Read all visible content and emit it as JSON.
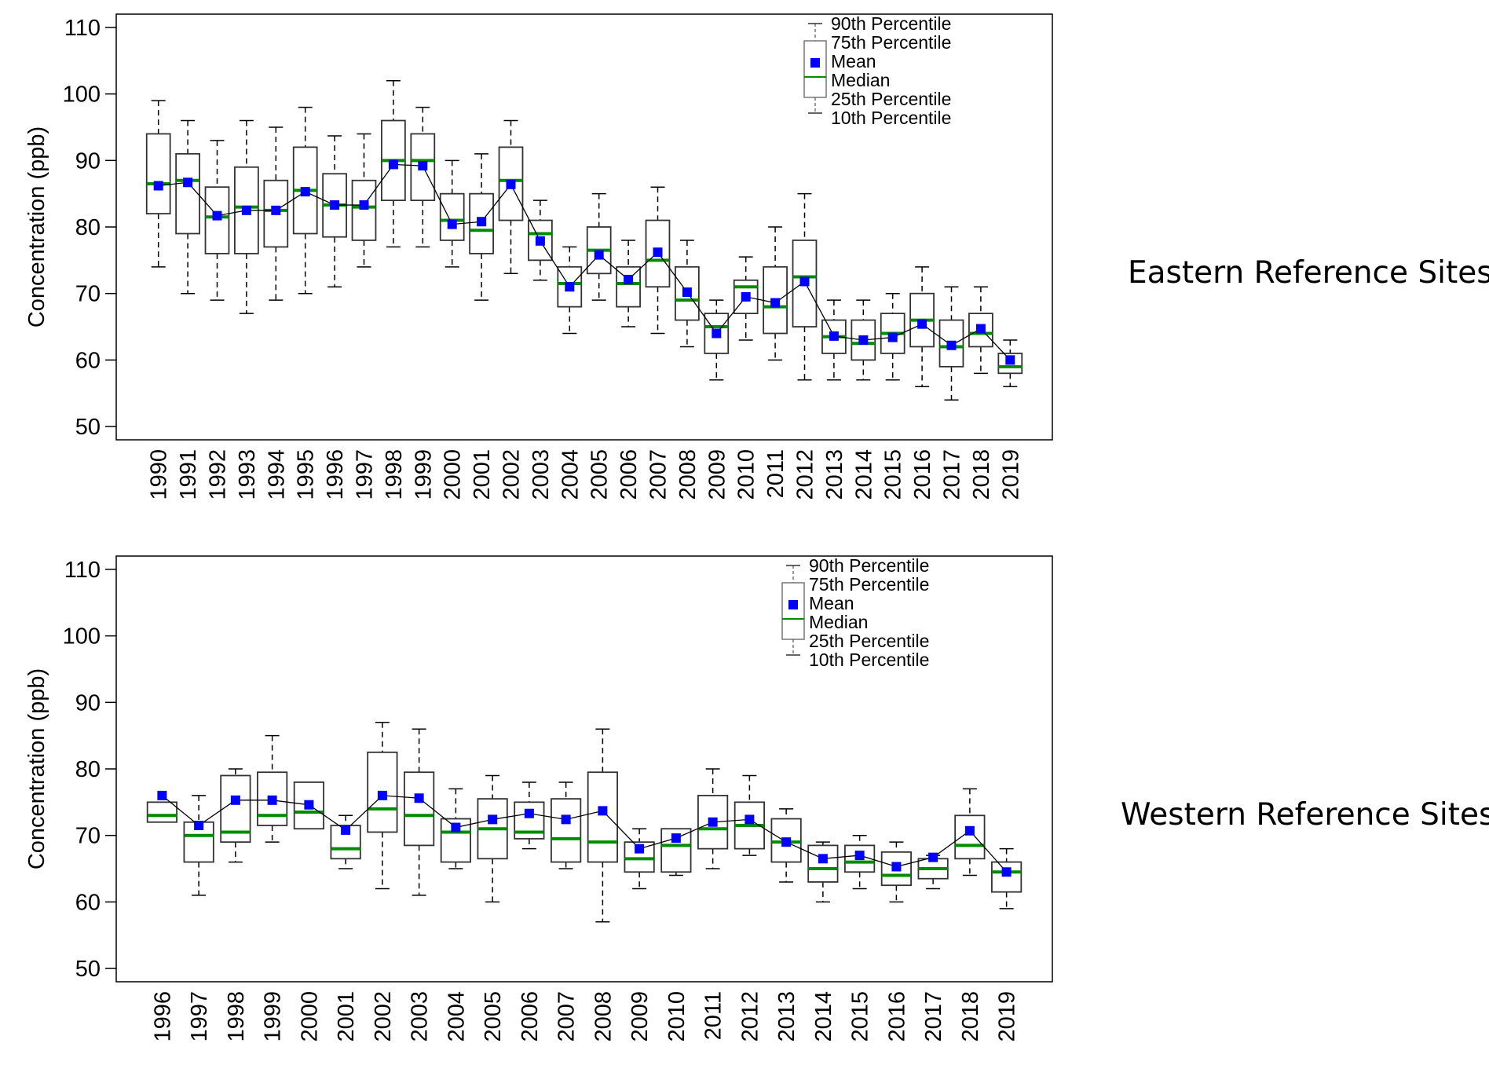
{
  "chart_data": [
    {
      "type": "boxplot",
      "title": "Eastern Reference Sites",
      "xlabel": "",
      "ylabel": "Concentration (ppb)",
      "ylim": [
        48,
        112
      ],
      "yticks": [
        50,
        60,
        70,
        80,
        90,
        100,
        110
      ],
      "legend": {
        "placement": "top-right",
        "entries": [
          "90th Percentile",
          "75th Percentile",
          "Mean",
          "Median",
          "25th Percentile",
          "10th Percentile"
        ]
      },
      "categories": [
        "1990",
        "1991",
        "1992",
        "1993",
        "1994",
        "1995",
        "1996",
        "1997",
        "1998",
        "1999",
        "2000",
        "2001",
        "2002",
        "2003",
        "2004",
        "2005",
        "2006",
        "2007",
        "2008",
        "2009",
        "2010",
        "2011",
        "2012",
        "2013",
        "2014",
        "2015",
        "2016",
        "2017",
        "2018",
        "2019"
      ],
      "p10": [
        74,
        70,
        69,
        67,
        69,
        70,
        71,
        74,
        77,
        77,
        74,
        69,
        73,
        72,
        64,
        69,
        65,
        64,
        62,
        57,
        63,
        60,
        57,
        57,
        57,
        57,
        56,
        54,
        58,
        56
      ],
      "p25": [
        82,
        79,
        76,
        76,
        77,
        79,
        78.5,
        78,
        84,
        84,
        78,
        76,
        81,
        75,
        68,
        73,
        68,
        71,
        66,
        61,
        67,
        64,
        65,
        61,
        60,
        61,
        62,
        59,
        62,
        58
      ],
      "median": [
        86.5,
        87,
        81.5,
        83,
        82.5,
        85.5,
        83.3,
        83,
        90,
        90,
        81,
        79.5,
        87,
        79,
        71.5,
        76.5,
        71.5,
        75,
        69,
        65,
        71,
        68,
        72.5,
        63.5,
        62.5,
        64,
        66,
        62,
        64,
        59
      ],
      "mean": [
        86.2,
        86.7,
        81.7,
        82.5,
        82.5,
        85.3,
        83.3,
        83.3,
        89.4,
        89.2,
        80.4,
        80.8,
        86.4,
        77.9,
        71,
        75.8,
        72.1,
        76.2,
        70.2,
        64,
        69.5,
        68.6,
        71.8,
        63.6,
        63,
        63.4,
        65.4,
        62.2,
        64.7,
        60
      ],
      "p75": [
        94,
        91,
        86,
        89,
        87,
        92,
        88,
        87,
        96,
        94,
        85,
        85,
        92,
        81,
        74,
        80,
        74,
        81,
        74,
        67,
        72,
        74,
        78,
        66,
        66,
        67,
        70,
        66,
        67,
        61
      ],
      "p90": [
        99,
        96,
        93,
        96,
        95,
        98,
        93.7,
        94,
        102,
        98,
        90,
        91,
        96,
        84,
        77,
        85,
        78,
        86,
        78,
        69,
        75.5,
        80,
        85,
        69,
        69,
        70,
        74,
        71,
        71,
        63
      ]
    },
    {
      "type": "boxplot",
      "title": "Western Reference Sites",
      "xlabel": "",
      "ylabel": "Concentration (ppb)",
      "ylim": [
        48,
        112
      ],
      "yticks": [
        50,
        60,
        70,
        80,
        90,
        100,
        110
      ],
      "legend": {
        "placement": "top-right",
        "entries": [
          "90th Percentile",
          "75th Percentile",
          "Mean",
          "Median",
          "25th Percentile",
          "10th Percentile"
        ]
      },
      "categories": [
        "1996",
        "1997",
        "1998",
        "1999",
        "2000",
        "2001",
        "2002",
        "2003",
        "2004",
        "2005",
        "2006",
        "2007",
        "2008",
        "2009",
        "2010",
        "2011",
        "2012",
        "2013",
        "2014",
        "2015",
        "2016",
        "2017",
        "2018",
        "2019"
      ],
      "p10": [
        null,
        61,
        66,
        69,
        null,
        65,
        62,
        61,
        65,
        60,
        68,
        65,
        57,
        62,
        64,
        65,
        67,
        63,
        60,
        62,
        60,
        62,
        64,
        59
      ],
      "p25": [
        72,
        66,
        69,
        71.5,
        71,
        66.5,
        70.5,
        68.5,
        66,
        66.5,
        69.5,
        66,
        66,
        64.5,
        64.5,
        68,
        68,
        66,
        63,
        64.5,
        62.5,
        63.5,
        66.5,
        61.5
      ],
      "median": [
        73,
        70,
        70.5,
        73,
        73.5,
        68,
        74,
        73,
        70.5,
        71,
        70.5,
        69.5,
        69,
        66.5,
        68.5,
        71,
        71.5,
        69,
        65,
        66,
        64,
        65,
        68.5,
        64.5
      ],
      "mean": [
        76,
        71.5,
        75.3,
        75.3,
        74.6,
        70.8,
        76,
        75.6,
        71.2,
        72.4,
        73.3,
        72.4,
        73.7,
        68,
        69.6,
        72,
        72.4,
        69,
        66.5,
        67,
        65.3,
        66.7,
        70.7,
        64.5
      ],
      "p75": [
        75,
        72,
        79,
        79.5,
        78,
        71.5,
        82.5,
        79.5,
        72.5,
        75.5,
        75,
        75.5,
        79.5,
        69,
        71,
        76,
        75,
        72.5,
        68.5,
        68.5,
        67.5,
        66.5,
        73,
        66
      ],
      "p90": [
        null,
        76,
        80,
        85,
        null,
        73,
        87,
        86,
        77,
        79,
        78,
        78,
        86,
        71,
        null,
        80,
        79,
        74,
        69,
        70,
        69,
        67,
        77,
        68
      ]
    }
  ],
  "colors": {
    "mean": "#0000ff",
    "median": "#008c00",
    "box": "#333333",
    "line": "#000000"
  },
  "side_labels": [
    "Eastern Reference Sites",
    "Western Reference Sites"
  ]
}
